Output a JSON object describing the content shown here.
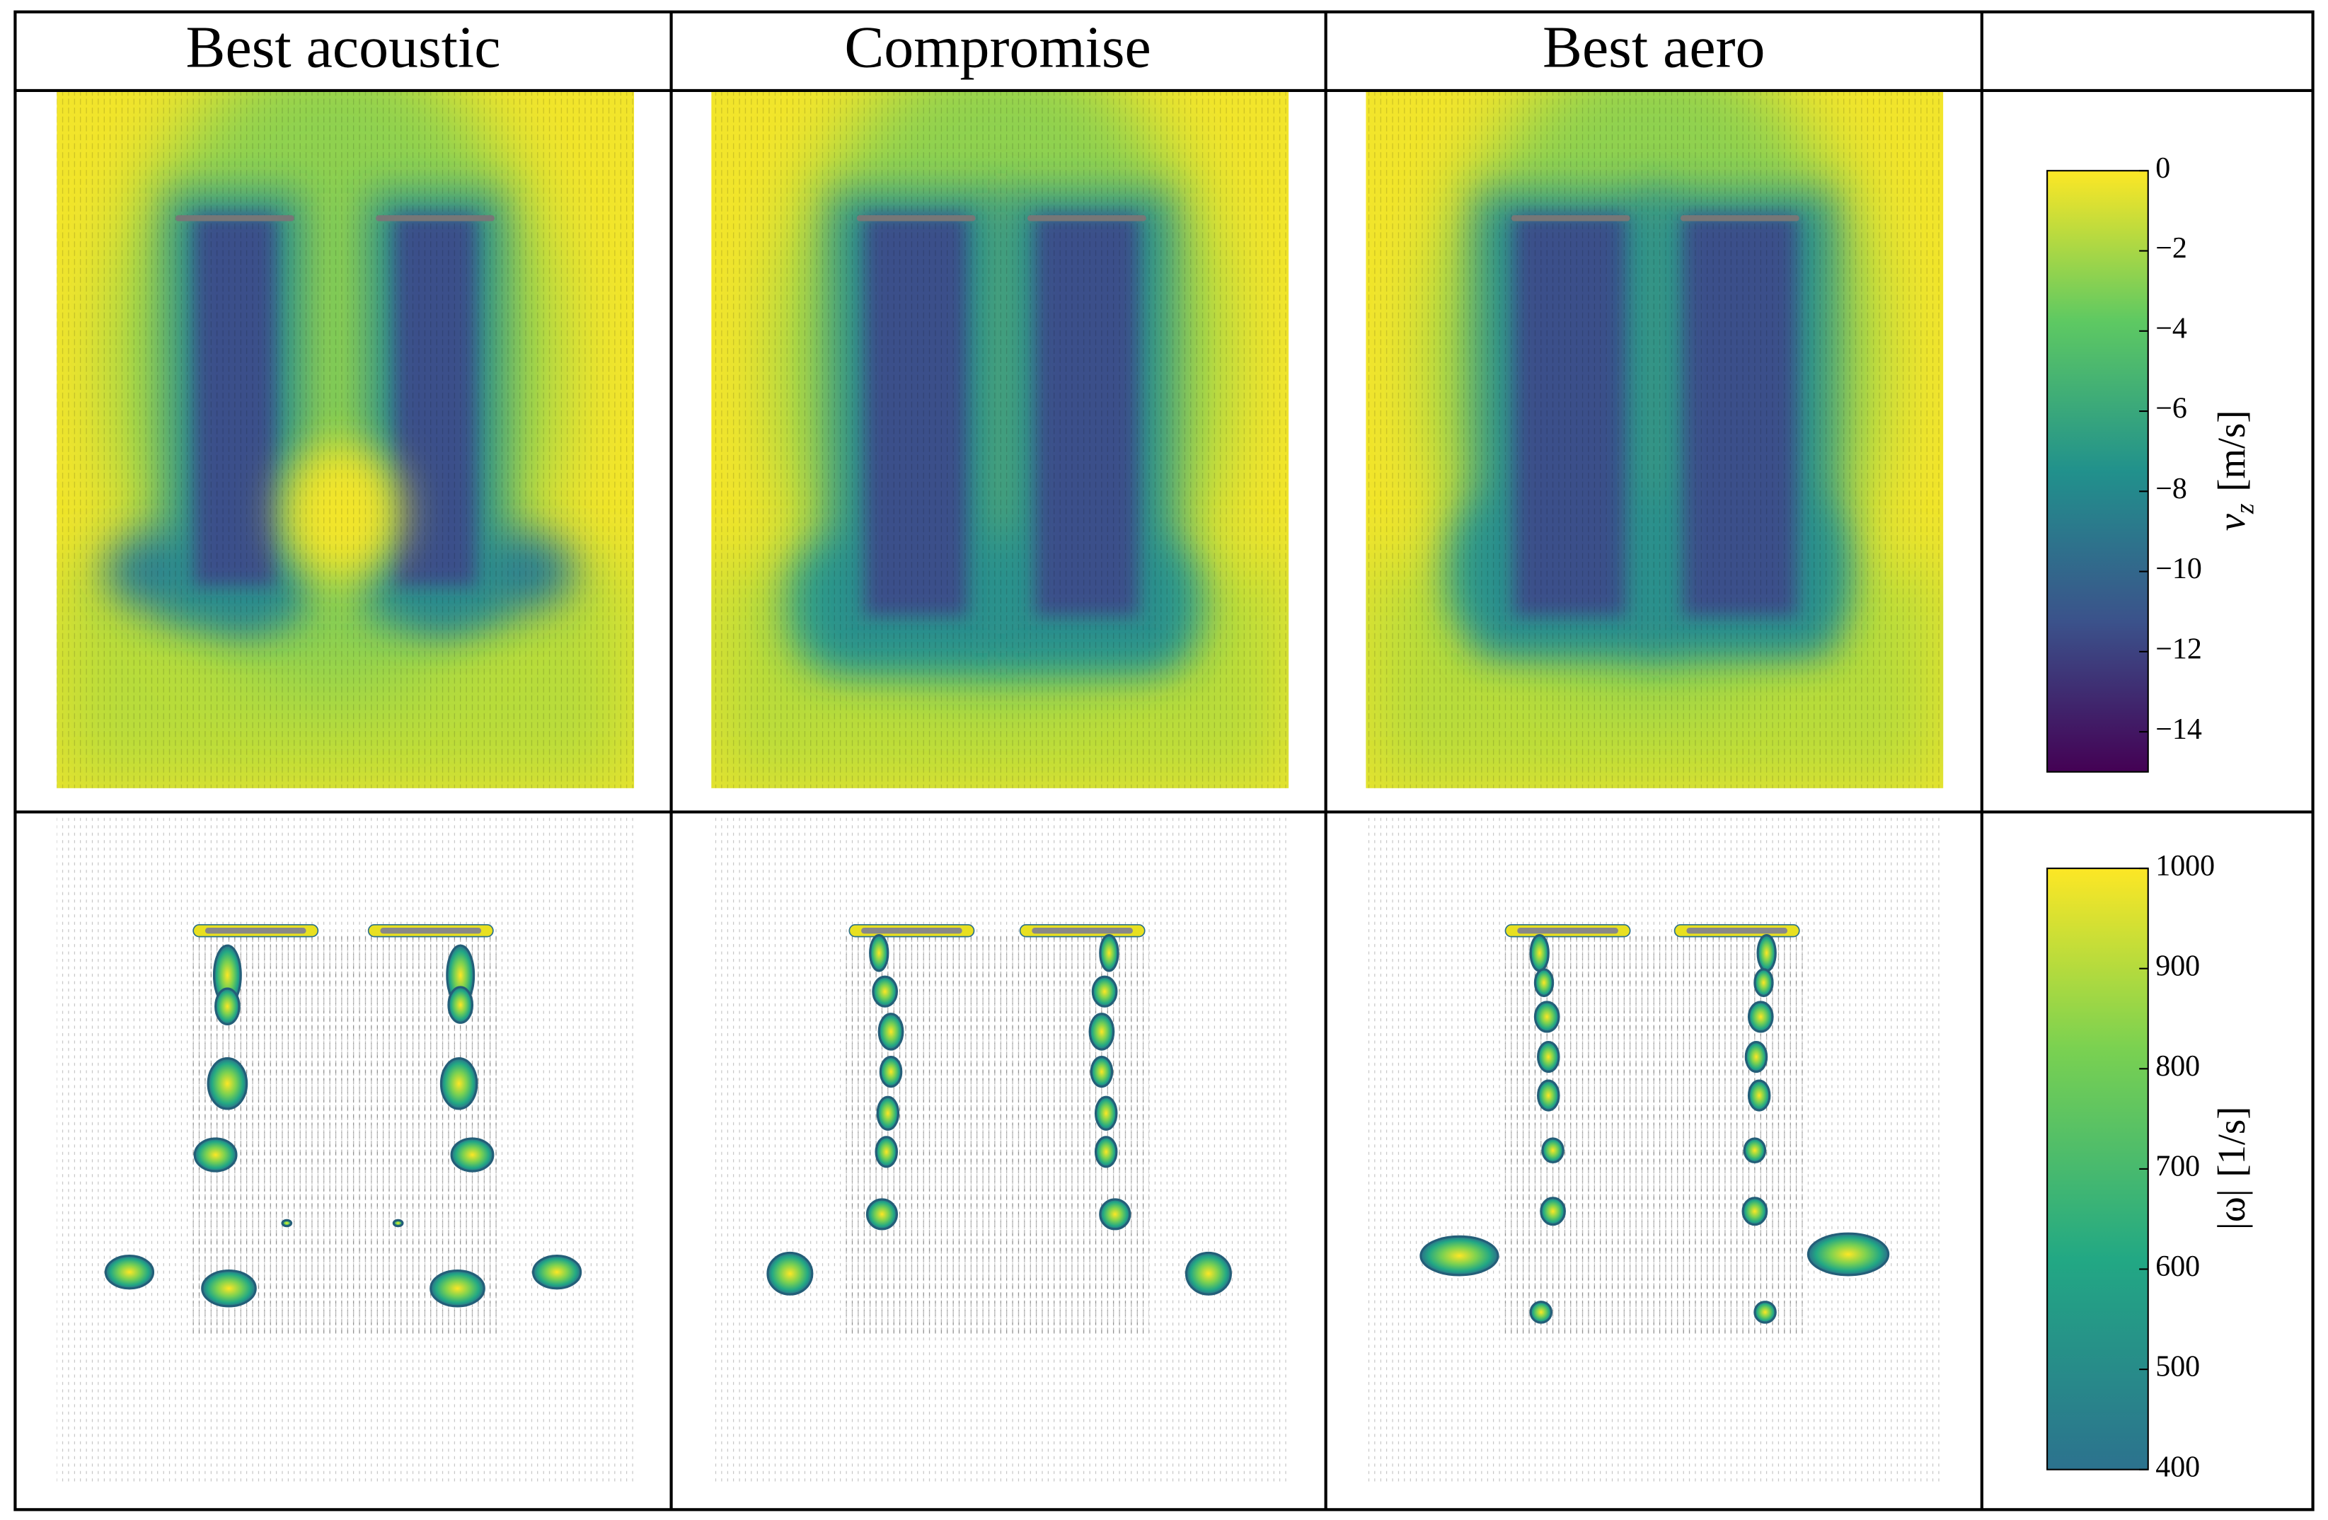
{
  "header": {
    "columns": [
      "Best acoustic",
      "Compromise",
      "Best aero"
    ]
  },
  "colorbars": [
    {
      "variable": "v",
      "subscript": "z",
      "unit": "[m/s]",
      "lim": [
        -15,
        0
      ],
      "ticks": [
        0,
        {
          "value": -2,
          "label": "−2"
        },
        {
          "value": -4,
          "label": "−4"
        },
        {
          "value": -6,
          "label": "−6"
        },
        {
          "value": -8,
          "label": "−8"
        },
        {
          "value": -10,
          "label": "−10"
        },
        {
          "value": -12,
          "label": "−12"
        },
        {
          "value": -14,
          "label": "−14"
        }
      ]
    },
    {
      "variable": "|ω|",
      "unit": "[1/s]",
      "lim": [
        400,
        1000
      ],
      "ticks": [
        400,
        500,
        600,
        700,
        800,
        900,
        1000
      ]
    }
  ]
}
